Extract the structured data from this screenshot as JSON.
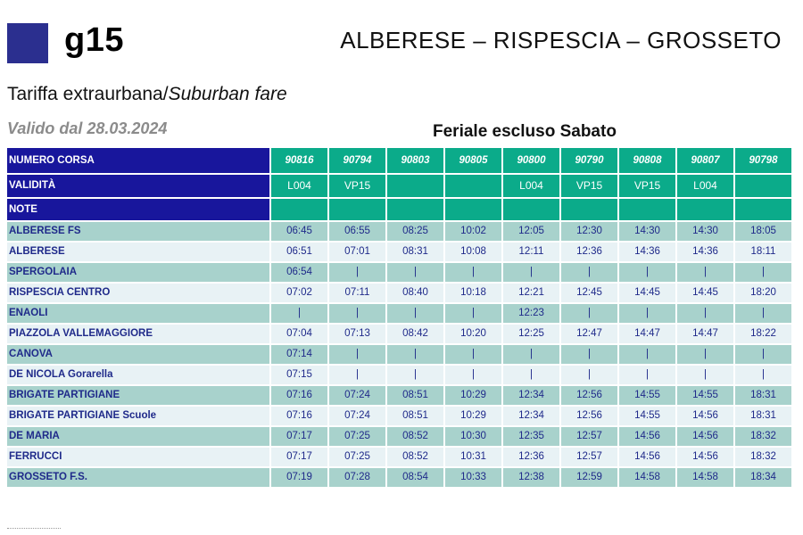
{
  "header": {
    "line": "g15",
    "route": "ALBERESE – RISPESCIA – GROSSETO",
    "fare_it": "Tariffa extraurbana/",
    "fare_en": "Suburban fare",
    "valid": "Valido dal 28.03.2024",
    "day_type": "Feriale escluso Sabato"
  },
  "table": {
    "label_run": "NUMERO CORSA",
    "label_validity": "VALIDITÀ",
    "label_note": "NOTE",
    "runs": [
      "90816",
      "90794",
      "90803",
      "90805",
      "90800",
      "90790",
      "90808",
      "90807",
      "90798"
    ],
    "validity": [
      "L004",
      "VP15",
      "",
      "",
      "L004",
      "VP15",
      "VP15",
      "L004",
      ""
    ],
    "stops": [
      {
        "name": "ALBERESE FS",
        "times": [
          "06:45",
          "06:55",
          "08:25",
          "10:02",
          "12:05",
          "12:30",
          "14:30",
          "14:30",
          "18:05"
        ]
      },
      {
        "name": "ALBERESE",
        "times": [
          "06:51",
          "07:01",
          "08:31",
          "10:08",
          "12:11",
          "12:36",
          "14:36",
          "14:36",
          "18:11"
        ]
      },
      {
        "name": "SPERGOLAIA",
        "times": [
          "06:54",
          "|",
          "|",
          "|",
          "|",
          "|",
          "|",
          "|",
          "|"
        ]
      },
      {
        "name": "RISPESCIA CENTRO",
        "times": [
          "07:02",
          "07:11",
          "08:40",
          "10:18",
          "12:21",
          "12:45",
          "14:45",
          "14:45",
          "18:20"
        ]
      },
      {
        "name": "ENAOLI",
        "times": [
          "|",
          "|",
          "|",
          "|",
          "12:23",
          "|",
          "|",
          "|",
          "|"
        ]
      },
      {
        "name": "PIAZZOLA VALLEMAGGIORE",
        "times": [
          "07:04",
          "07:13",
          "08:42",
          "10:20",
          "12:25",
          "12:47",
          "14:47",
          "14:47",
          "18:22"
        ]
      },
      {
        "name": "CANOVA",
        "times": [
          "07:14",
          "|",
          "|",
          "|",
          "|",
          "|",
          "|",
          "|",
          "|"
        ]
      },
      {
        "name": "DE NICOLA Gorarella",
        "times": [
          "07:15",
          "|",
          "|",
          "|",
          "|",
          "|",
          "|",
          "|",
          "|"
        ]
      },
      {
        "name": "BRIGATE PARTIGIANE",
        "times": [
          "07:16",
          "07:24",
          "08:51",
          "10:29",
          "12:34",
          "12:56",
          "14:55",
          "14:55",
          "18:31"
        ]
      },
      {
        "name": "BRIGATE PARTIGIANE Scuole",
        "times": [
          "07:16",
          "07:24",
          "08:51",
          "10:29",
          "12:34",
          "12:56",
          "14:55",
          "14:56",
          "18:31"
        ]
      },
      {
        "name": "DE MARIA",
        "times": [
          "07:17",
          "07:25",
          "08:52",
          "10:30",
          "12:35",
          "12:57",
          "14:56",
          "14:56",
          "18:32"
        ]
      },
      {
        "name": "FERRUCCI",
        "times": [
          "07:17",
          "07:25",
          "08:52",
          "10:31",
          "12:36",
          "12:57",
          "14:56",
          "14:56",
          "18:32"
        ]
      },
      {
        "name": "GROSSETO F.S.",
        "times": [
          "07:19",
          "07:28",
          "08:54",
          "10:33",
          "12:38",
          "12:59",
          "14:58",
          "14:58",
          "18:34"
        ]
      }
    ]
  }
}
